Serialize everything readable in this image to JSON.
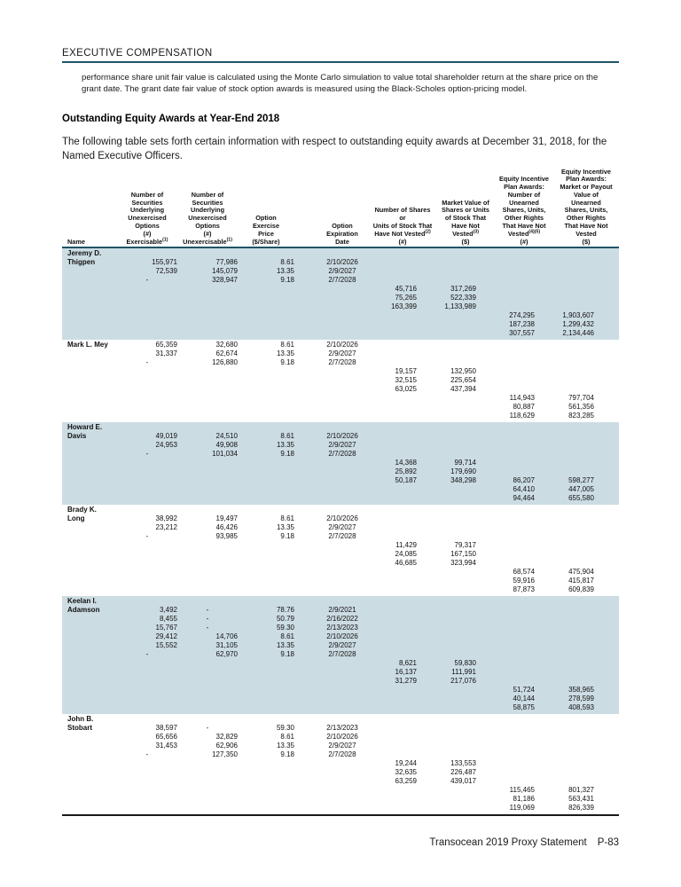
{
  "page": {
    "section_header": "EXECUTIVE COMPENSATION",
    "note_paragraph": "performance share unit fair value is calculated using the Monte Carlo simulation to value total shareholder return at the share price on the grant date. The grant date fair value of stock option awards is measured using the Black-Scholes option-pricing model.",
    "heading": "Outstanding Equity Awards at Year-End 2018",
    "intro_paragraph": "The following table sets forth certain information with respect to outstanding equity awards at December 31, 2018, for the Named Executive Officers.",
    "footer": {
      "text": "Transocean 2019 Proxy Statement",
      "page_number": "P-83"
    }
  },
  "colors": {
    "accent_rule": "#1f5366",
    "row_shade": "#ccdce3"
  },
  "table": {
    "columns": [
      {
        "id": "name",
        "lines": [
          "Name"
        ]
      },
      {
        "id": "options-exercisable",
        "lines": [
          "Number of",
          "Securities",
          "Underlying",
          "Unexercised",
          "Options",
          "(#)",
          "Exercisable^(1)"
        ]
      },
      {
        "id": "options-unexercisable",
        "lines": [
          "Number of",
          "Securities",
          "Underlying",
          "Unexercised",
          "Options",
          "(#)",
          "Unexercisable^(1)"
        ]
      },
      {
        "id": "option-exercise-price",
        "lines": [
          "Option",
          "Exercise",
          "Price",
          "($/Share)"
        ]
      },
      {
        "id": "option-expiration-date",
        "lines": [
          "Option",
          "Expiration",
          "Date"
        ]
      },
      {
        "id": "shares-not-vested",
        "lines": [
          "Number of Shares",
          "or",
          "Units of Stock That",
          "Have Not Vested^(2)",
          "(#)"
        ]
      },
      {
        "id": "market-value-not-vested",
        "lines": [
          "Market Value of",
          "Shares or Units",
          "of Stock That",
          "Have Not",
          "Vested^(3)",
          "($)"
        ]
      },
      {
        "id": "eip-unearned-number",
        "lines": [
          "Equity Incentive",
          "Plan Awards:",
          "Number of",
          "Unearned",
          "Shares, Units,",
          "Other Rights",
          "That Have Not",
          "Vested^(4)^(5)",
          "(#)"
        ]
      },
      {
        "id": "eip-unearned-value",
        "lines": [
          "Equity Incentive",
          "Plan Awards:",
          "Market or Payout",
          "Value of",
          "Unearned",
          "Shares, Units,",
          "Other Rights",
          "That Have Not",
          "Vested",
          "($)"
        ]
      }
    ],
    "officers": [
      {
        "name_lines": [
          "Jeremy D.",
          "Thigpen"
        ],
        "shaded": true,
        "rows": [
          [
            "155,971",
            "77,986",
            "8.61",
            "2/10/2026",
            "",
            "",
            "",
            ""
          ],
          [
            "72,539",
            "145,079",
            "13.35",
            "2/9/2027",
            "",
            "",
            "",
            ""
          ],
          [
            "-",
            "328,947",
            "9.18",
            "2/7/2028",
            "",
            "",
            "",
            ""
          ],
          [
            "",
            "",
            "",
            "",
            "45,716",
            "317,269",
            "",
            ""
          ],
          [
            "",
            "",
            "",
            "",
            "75,265",
            "522,339",
            "",
            ""
          ],
          [
            "",
            "",
            "",
            "",
            "163,399",
            "1,133,989",
            "",
            ""
          ],
          [
            "",
            "",
            "",
            "",
            "",
            "",
            "274,295",
            "1,903,607"
          ],
          [
            "",
            "",
            "",
            "",
            "",
            "",
            "187,238",
            "1,299,432"
          ],
          [
            "",
            "",
            "",
            "",
            "",
            "",
            "307,557",
            "2,134,446"
          ]
        ]
      },
      {
        "name_lines": [
          "Mark L. Mey"
        ],
        "shaded": false,
        "rows": [
          [
            "65,359",
            "32,680",
            "8.61",
            "2/10/2026",
            "",
            "",
            "",
            ""
          ],
          [
            "31,337",
            "62,674",
            "13.35",
            "2/9/2027",
            "",
            "",
            "",
            ""
          ],
          [
            "-",
            "126,880",
            "9.18",
            "2/7/2028",
            "",
            "",
            "",
            ""
          ],
          [
            "",
            "",
            "",
            "",
            "19,157",
            "132,950",
            "",
            ""
          ],
          [
            "",
            "",
            "",
            "",
            "32,515",
            "225,654",
            "",
            ""
          ],
          [
            "",
            "",
            "",
            "",
            "63,025",
            "437,394",
            "",
            ""
          ],
          [
            "",
            "",
            "",
            "",
            "",
            "",
            "114,943",
            "797,704"
          ],
          [
            "",
            "",
            "",
            "",
            "",
            "",
            "80,887",
            "561,356"
          ],
          [
            "",
            "",
            "",
            "",
            "",
            "",
            "118,629",
            "823,285"
          ]
        ]
      },
      {
        "name_lines": [
          "Howard E.",
          "Davis"
        ],
        "shaded": true,
        "rows": [
          [
            "49,019",
            "24,510",
            "8.61",
            "2/10/2026",
            "",
            "",
            "",
            ""
          ],
          [
            "24,953",
            "49,908",
            "13.35",
            "2/9/2027",
            "",
            "",
            "",
            ""
          ],
          [
            "-",
            "101,034",
            "9.18",
            "2/7/2028",
            "",
            "",
            "",
            ""
          ],
          [
            "",
            "",
            "",
            "",
            "14,368",
            "99,714",
            "",
            ""
          ],
          [
            "",
            "",
            "",
            "",
            "25,892",
            "179,690",
            "",
            ""
          ],
          [
            "",
            "",
            "",
            "",
            "50,187",
            "348,298",
            "86,207",
            "598,277"
          ],
          [
            "",
            "",
            "",
            "",
            "",
            "",
            "64,410",
            "447,005"
          ],
          [
            "",
            "",
            "",
            "",
            "",
            "",
            "94,464",
            "655,580"
          ]
        ]
      },
      {
        "name_lines": [
          "Brady K.",
          "Long"
        ],
        "shaded": false,
        "rows": [
          [
            "38,992",
            "19,497",
            "8.61",
            "2/10/2026",
            "",
            "",
            "",
            ""
          ],
          [
            "23,212",
            "46,426",
            "13.35",
            "2/9/2027",
            "",
            "",
            "",
            ""
          ],
          [
            "-",
            "93,985",
            "9.18",
            "2/7/2028",
            "",
            "",
            "",
            ""
          ],
          [
            "",
            "",
            "",
            "",
            "11,429",
            "79,317",
            "",
            ""
          ],
          [
            "",
            "",
            "",
            "",
            "24,085",
            "167,150",
            "",
            ""
          ],
          [
            "",
            "",
            "",
            "",
            "46,685",
            "323,994",
            "",
            ""
          ],
          [
            "",
            "",
            "",
            "",
            "",
            "",
            "68,574",
            "475,904"
          ],
          [
            "",
            "",
            "",
            "",
            "",
            "",
            "59,916",
            "415,817"
          ],
          [
            "",
            "",
            "",
            "",
            "",
            "",
            "87,873",
            "609,839"
          ]
        ]
      },
      {
        "name_lines": [
          "Keelan I.",
          "Adamson"
        ],
        "shaded": true,
        "rows": [
          [
            "3,492",
            "-",
            "78.76",
            "2/9/2021",
            "",
            "",
            "",
            ""
          ],
          [
            "8,455",
            "-",
            "50.79",
            "2/16/2022",
            "",
            "",
            "",
            ""
          ],
          [
            "15,767",
            "-",
            "59.30",
            "2/13/2023",
            "",
            "",
            "",
            ""
          ],
          [
            "29,412",
            "14,706",
            "8.61",
            "2/10/2026",
            "",
            "",
            "",
            ""
          ],
          [
            "15,552",
            "31,105",
            "13.35",
            "2/9/2027",
            "",
            "",
            "",
            ""
          ],
          [
            "-",
            "62,970",
            "9.18",
            "2/7/2028",
            "",
            "",
            "",
            ""
          ],
          [
            "",
            "",
            "",
            "",
            "8,621",
            "59,830",
            "",
            ""
          ],
          [
            "",
            "",
            "",
            "",
            "16,137",
            "111,991",
            "",
            ""
          ],
          [
            "",
            "",
            "",
            "",
            "31,279",
            "217,076",
            "",
            ""
          ],
          [
            "",
            "",
            "",
            "",
            "",
            "",
            "51,724",
            "358,965"
          ],
          [
            "",
            "",
            "",
            "",
            "",
            "",
            "40,144",
            "278,599"
          ],
          [
            "",
            "",
            "",
            "",
            "",
            "",
            "58,875",
            "408,593"
          ]
        ]
      },
      {
        "name_lines": [
          "John B.",
          "Stobart"
        ],
        "shaded": false,
        "rows": [
          [
            "38,597",
            "-",
            "59.30",
            "2/13/2023",
            "",
            "",
            "",
            ""
          ],
          [
            "65,656",
            "32,829",
            "8.61",
            "2/10/2026",
            "",
            "",
            "",
            ""
          ],
          [
            "31,453",
            "62,906",
            "13.35",
            "2/9/2027",
            "",
            "",
            "",
            ""
          ],
          [
            "-",
            "127,350",
            "9.18",
            "2/7/2028",
            "",
            "",
            "",
            ""
          ],
          [
            "",
            "",
            "",
            "",
            "19,244",
            "133,553",
            "",
            ""
          ],
          [
            "",
            "",
            "",
            "",
            "32,635",
            "226,487",
            "",
            ""
          ],
          [
            "",
            "",
            "",
            "",
            "63,259",
            "439,017",
            "",
            ""
          ],
          [
            "",
            "",
            "",
            "",
            "",
            "",
            "115,465",
            "801,327"
          ],
          [
            "",
            "",
            "",
            "",
            "",
            "",
            "81,186",
            "563,431"
          ],
          [
            "",
            "",
            "",
            "",
            "",
            "",
            "119,069",
            "826,339"
          ]
        ]
      }
    ]
  }
}
